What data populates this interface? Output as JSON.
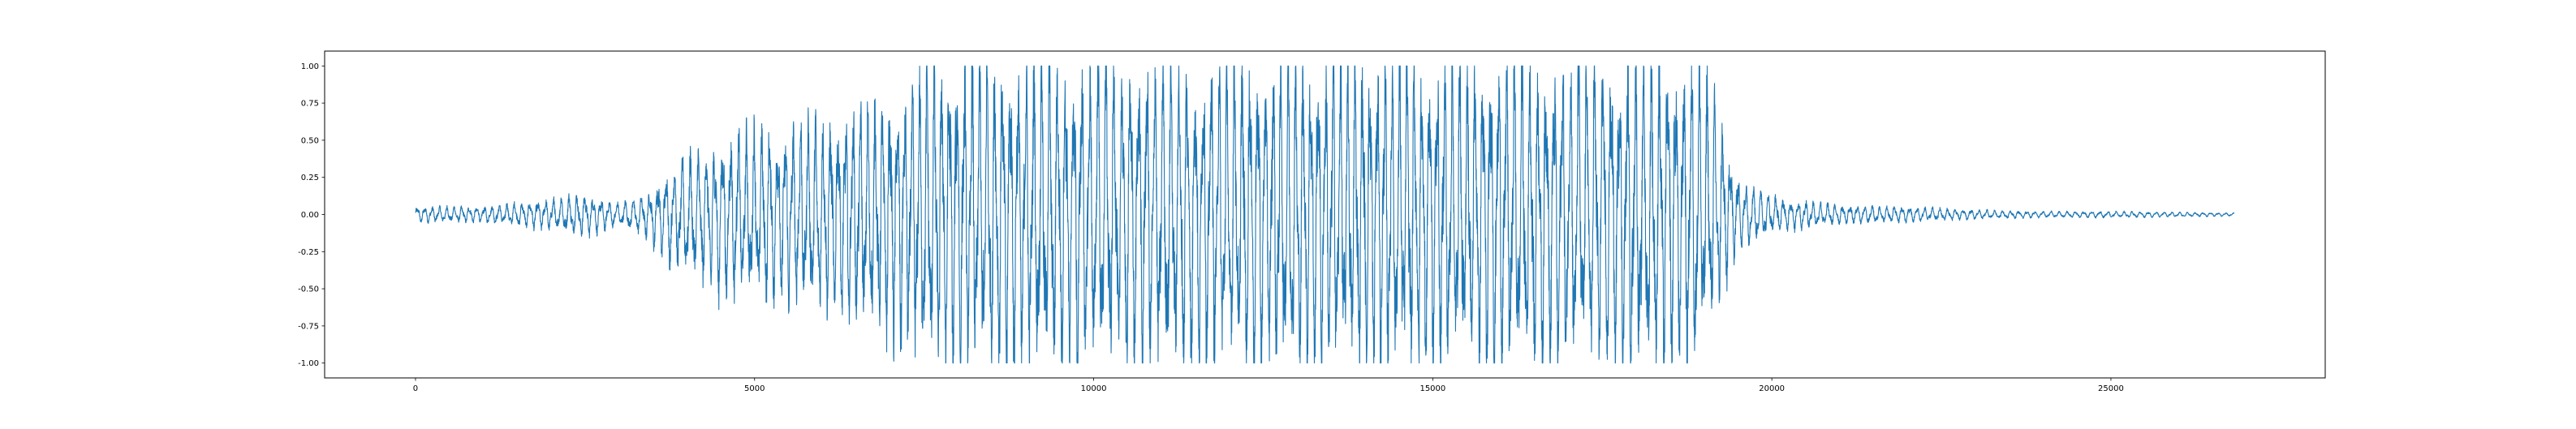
{
  "chart_data": {
    "type": "line",
    "title": "",
    "xlabel": "",
    "ylabel": "",
    "xlim": [
      -1340,
      28160
    ],
    "ylim": [
      -1.1,
      1.1
    ],
    "x_ticks": [
      0,
      5000,
      10000,
      15000,
      20000,
      25000
    ],
    "y_ticks": [
      -1.0,
      -0.75,
      -0.5,
      -0.25,
      0.0,
      0.25,
      0.5,
      0.75,
      1.0
    ],
    "x_tick_labels": [
      "0",
      "5000",
      "10000",
      "15000",
      "20000",
      "25000"
    ],
    "y_tick_labels": [
      "-1.00",
      "-0.75",
      "-0.50",
      "-0.25",
      "0.00",
      "0.25",
      "0.50",
      "0.75",
      "1.00"
    ],
    "grid": false,
    "legend": "none",
    "series": [
      {
        "color": "#1f77b4",
        "sample_count": 26820,
        "envelope_upper": [
          [
            0,
            0.05
          ],
          [
            1000,
            0.05
          ],
          [
            2000,
            0.1
          ],
          [
            2500,
            0.13
          ],
          [
            3000,
            0.07
          ],
          [
            3400,
            0.12
          ],
          [
            3800,
            0.32
          ],
          [
            4500,
            0.48
          ],
          [
            5000,
            0.55
          ],
          [
            6000,
            0.62
          ],
          [
            7000,
            0.72
          ],
          [
            7400,
            0.8
          ],
          [
            7600,
            1.0
          ],
          [
            18900,
            1.0
          ],
          [
            19000,
            0.9
          ],
          [
            19300,
            0.58
          ],
          [
            19500,
            0.25
          ],
          [
            20000,
            0.12
          ],
          [
            21000,
            0.06
          ],
          [
            22000,
            0.05
          ],
          [
            23000,
            0.03
          ],
          [
            24000,
            0.02
          ],
          [
            25000,
            0.02
          ],
          [
            26000,
            0.015
          ],
          [
            26820,
            0.01
          ]
        ],
        "envelope_lower": [
          [
            0,
            -0.05
          ],
          [
            1000,
            -0.05
          ],
          [
            2000,
            -0.1
          ],
          [
            2500,
            -0.14
          ],
          [
            3000,
            -0.07
          ],
          [
            3400,
            -0.15
          ],
          [
            3800,
            -0.35
          ],
          [
            4500,
            -0.52
          ],
          [
            5000,
            -0.55
          ],
          [
            6000,
            -0.62
          ],
          [
            7000,
            -0.8
          ],
          [
            7600,
            -1.0
          ],
          [
            18900,
            -1.0
          ],
          [
            19000,
            -0.85
          ],
          [
            19300,
            -0.48
          ],
          [
            19500,
            -0.22
          ],
          [
            20000,
            -0.12
          ],
          [
            21000,
            -0.06
          ],
          [
            22000,
            -0.05
          ],
          [
            23000,
            -0.03
          ],
          [
            24000,
            -0.02
          ],
          [
            25000,
            -0.02
          ],
          [
            26000,
            -0.015
          ],
          [
            26820,
            -0.01
          ]
        ]
      }
    ]
  }
}
